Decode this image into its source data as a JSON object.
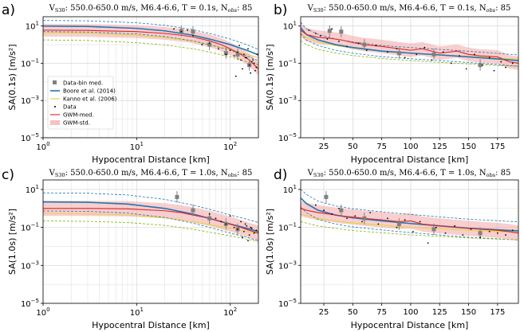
{
  "chart_data": [
    {
      "panel_label": "a)",
      "type": "line",
      "title_html": "V<tspan font-size='6.5' dy='2'>S30</tspan><tspan dy='-2'>: 550.0-650.0 m/s,  M6.4-6.6, T = 0.1s, N</tspan><tspan font-size='6.5' font-style='italic' dy='2'>obs</tspan><tspan dy='-2'>: 85</tspan>",
      "xlabel": "Hypocentral Distance [km]",
      "ylabel": "SA(0.1s) [m/s²]",
      "xscale": "log",
      "xlim": [
        1,
        200
      ],
      "ylim_log10": [
        -5,
        1.5
      ],
      "xticks": [
        {
          "v": 1,
          "base": "10",
          "exp": "0"
        },
        {
          "v": 10,
          "base": "10",
          "exp": "1"
        },
        {
          "v": 100,
          "base": "10",
          "exp": "2"
        }
      ],
      "yticks": [
        {
          "v": 10,
          "base": "10",
          "exp": "1"
        },
        {
          "v": 0.1,
          "base": "10",
          "exp": "−1"
        },
        {
          "v": 0.001,
          "base": "10",
          "exp": "−3"
        },
        {
          "v": 1e-05,
          "base": "10",
          "exp": "−5"
        }
      ],
      "legend": {
        "position": "center-left",
        "entries": [
          "Data-bin med.",
          "Boore et al. (2014)",
          "Kanno et al. (2006)",
          "Data",
          "GWM-med.",
          "GWM-std."
        ]
      },
      "series": [
        {
          "name": "Boore et al. (2014)",
          "x": [
            1,
            3,
            10,
            20,
            40,
            60,
            100,
            150,
            200
          ],
          "y": [
            10,
            9.5,
            7.5,
            5.5,
            3.2,
            2.0,
            1.0,
            0.5,
            0.28
          ],
          "std_factor": 2.0
        },
        {
          "name": "Kanno et al. (2006)",
          "x": [
            1,
            3,
            10,
            20,
            40,
            60,
            100,
            150,
            200
          ],
          "y": [
            4.5,
            4.2,
            3.2,
            2.4,
            1.5,
            1.0,
            0.55,
            0.3,
            0.2
          ]
        },
        {
          "name": "GWM-med.",
          "x": [
            1,
            3,
            10,
            20,
            30,
            40,
            60,
            80,
            100,
            130,
            160,
            200
          ],
          "y": [
            6,
            5.8,
            5.0,
            4.0,
            3.2,
            2.6,
            1.6,
            1.0,
            0.6,
            0.3,
            0.15,
            0.05
          ],
          "std_factor": 2.2
        },
        {
          "name": "Data-bin med.",
          "x": [
            30,
            40,
            60,
            90,
            120,
            160
          ],
          "y": [
            5.5,
            5.0,
            1.0,
            0.35,
            0.3,
            0.08
          ],
          "err": 2.0
        },
        {
          "name": "Data",
          "x": [
            25,
            30,
            35,
            40,
            50,
            60,
            75,
            90,
            100,
            110,
            120,
            130,
            140,
            150,
            160,
            170,
            180,
            190,
            195,
            115,
            125,
            135,
            145,
            155,
            165,
            175,
            185
          ],
          "y": [
            7,
            5,
            6,
            3,
            1,
            1.2,
            0.6,
            0.3,
            0.5,
            0.25,
            0.4,
            0.15,
            0.3,
            0.2,
            0.08,
            0.12,
            0.1,
            0.06,
            0.3,
            0.02,
            0.9,
            0.05,
            0.2,
            0.6,
            0.03,
            0.15,
            0.04
          ]
        }
      ]
    },
    {
      "panel_label": "b)",
      "type": "line",
      "title_html": "V<tspan font-size='6.5' dy='2'>S30</tspan><tspan dy='-2'>: 550.0-650.0 m/s,  M6.4-6.6, T = 0.1s, N</tspan><tspan font-size='6.5' font-style='italic' dy='2'>obs</tspan><tspan dy='-2'>: 85</tspan>",
      "xlabel": "Hypocentral Distance [km]",
      "ylabel": "SA(0.1s) [m/s²]",
      "xscale": "linear",
      "xlim": [
        5,
        193
      ],
      "ylim_log10": [
        -5,
        1.5
      ],
      "xticks": [
        {
          "v": 25,
          "t": "25"
        },
        {
          "v": 50,
          "t": "50"
        },
        {
          "v": 75,
          "t": "75"
        },
        {
          "v": 100,
          "t": "100"
        },
        {
          "v": 125,
          "t": "125"
        },
        {
          "v": 150,
          "t": "150"
        },
        {
          "v": 175,
          "t": "175"
        }
      ],
      "yticks": [
        {
          "v": 10,
          "base": "10",
          "exp": "1"
        },
        {
          "v": 0.1,
          "base": "10",
          "exp": "−1"
        },
        {
          "v": 0.001,
          "base": "10",
          "exp": "−3"
        },
        {
          "v": 1e-05,
          "base": "10",
          "exp": "−5"
        }
      ],
      "series": [
        {
          "name": "Boore et al. (2014)",
          "x": [
            5,
            10,
            20,
            35,
            50,
            75,
            100,
            125,
            150,
            175,
            193
          ],
          "y": [
            8,
            3.5,
            1.8,
            1.0,
            0.7,
            0.45,
            0.35,
            0.28,
            0.22,
            0.17,
            0.14
          ],
          "std_factor": 2.0
        },
        {
          "name": "Kanno et al. (2006)",
          "x": [
            5,
            10,
            20,
            35,
            50,
            75,
            100,
            125,
            150,
            175,
            193
          ],
          "y": [
            4,
            2.5,
            1.4,
            0.9,
            0.65,
            0.45,
            0.35,
            0.28,
            0.23,
            0.19,
            0.17
          ]
        },
        {
          "name": "GWM-med.",
          "x": [
            5,
            10,
            20,
            30,
            40,
            50,
            60,
            75,
            90,
            100,
            110,
            125,
            140,
            150,
            160,
            175,
            185,
            193
          ],
          "y": [
            6,
            3.5,
            2.5,
            2.2,
            1.8,
            1.3,
            1.0,
            0.8,
            0.6,
            0.5,
            0.6,
            0.35,
            0.45,
            0.3,
            0.25,
            0.22,
            0.12,
            0.1
          ],
          "std_factor": 2.3
        },
        {
          "name": "Data-bin med.",
          "x": [
            30,
            40,
            60,
            90,
            120,
            160
          ],
          "y": [
            5.5,
            5.0,
            1.0,
            0.35,
            0.3,
            0.08
          ],
          "err": 2.0
        },
        {
          "name": "Data",
          "x": [
            12,
            18,
            22,
            28,
            32,
            38,
            45,
            55,
            62,
            70,
            80,
            88,
            95,
            105,
            112,
            118,
            128,
            135,
            142,
            148,
            155,
            162,
            168,
            172,
            178,
            182,
            188
          ],
          "y": [
            6,
            4,
            3,
            2,
            7,
            1.5,
            0.8,
            1.2,
            0.5,
            0.9,
            0.4,
            0.6,
            0.2,
            0.3,
            0.7,
            0.15,
            0.4,
            0.1,
            0.25,
            0.05,
            0.3,
            0.08,
            0.2,
            0.04,
            0.12,
            0.06,
            0.1
          ]
        }
      ]
    },
    {
      "panel_label": "c)",
      "type": "line",
      "title_html": "V<tspan font-size='6.5' dy='2'>S30</tspan><tspan dy='-2'>: 550.0-650.0 m/s,  M6.4-6.6, T = 1.0s, N</tspan><tspan font-size='6.5' dy='2'>obs</tspan><tspan dy='-2'>: 85</tspan>",
      "xlabel": "Hypocentral Distance [km]",
      "ylabel": "SA(1.0s) [m/s²]",
      "xscale": "log",
      "xlim": [
        1,
        200
      ],
      "ylim_log10": [
        -5,
        1.5
      ],
      "xticks": [
        {
          "v": 1,
          "base": "10",
          "exp": "0"
        },
        {
          "v": 10,
          "base": "10",
          "exp": "1"
        },
        {
          "v": 100,
          "base": "10",
          "exp": "2"
        }
      ],
      "yticks": [
        {
          "v": 10,
          "base": "10",
          "exp": "1"
        },
        {
          "v": 0.1,
          "base": "10",
          "exp": "−1"
        },
        {
          "v": 0.001,
          "base": "10",
          "exp": "−3"
        },
        {
          "v": 1e-05,
          "base": "10",
          "exp": "−5"
        }
      ],
      "series": [
        {
          "name": "Boore et al. (2014)",
          "x": [
            1,
            3,
            8,
            20,
            40,
            60,
            100,
            150,
            200
          ],
          "y": [
            2.2,
            2.1,
            1.7,
            1.0,
            0.5,
            0.3,
            0.15,
            0.09,
            0.06
          ],
          "std_factor": 3.0
        },
        {
          "name": "Kanno et al. (2006)",
          "x": [
            1,
            3,
            8,
            20,
            40,
            60,
            100,
            150,
            200
          ],
          "y": [
            0.55,
            0.52,
            0.45,
            0.32,
            0.2,
            0.14,
            0.09,
            0.06,
            0.045
          ]
        },
        {
          "name": "GWM-med.",
          "x": [
            1,
            3,
            8,
            20,
            30,
            40,
            60,
            80,
            100,
            130,
            160,
            200
          ],
          "y": [
            1.0,
            1.0,
            0.95,
            0.75,
            0.6,
            0.45,
            0.3,
            0.2,
            0.15,
            0.1,
            0.07,
            0.05
          ],
          "std_factor": 2.5
        },
        {
          "name": "Data-bin med.",
          "x": [
            27,
            40,
            60,
            90,
            120
          ],
          "y": [
            4.0,
            0.8,
            0.3,
            0.15,
            0.08
          ],
          "err": 2.0
        },
        {
          "name": "Data",
          "x": [
            60,
            70,
            80,
            90,
            100,
            110,
            120,
            130,
            140,
            150,
            160,
            170,
            180,
            190,
            135,
            145,
            155,
            165
          ],
          "y": [
            0.5,
            0.3,
            0.2,
            0.15,
            0.4,
            0.1,
            0.08,
            0.2,
            0.06,
            0.12,
            0.04,
            0.09,
            0.05,
            0.07,
            0.03,
            0.15,
            0.02,
            0.1
          ]
        }
      ]
    },
    {
      "panel_label": "d)",
      "type": "line",
      "title_html": "V<tspan font-size='6.5' dy='2'>S30</tspan><tspan dy='-2'>: 550.0-650.0 m/s,  M6.4-6.6, T = 1.0s, N</tspan><tspan font-size='6.5' dy='2'>obs</tspan><tspan dy='-2'>: 85</tspan>",
      "xlabel": "Hypocentral Distance [km]",
      "ylabel": "SA(1.0s) [m/s²]",
      "xscale": "linear",
      "xlim": [
        5,
        193
      ],
      "ylim_log10": [
        -5,
        1.5
      ],
      "xticks": [
        {
          "v": 25,
          "t": "25"
        },
        {
          "v": 50,
          "t": "50"
        },
        {
          "v": 75,
          "t": "75"
        },
        {
          "v": 100,
          "t": "100"
        },
        {
          "v": 125,
          "t": "125"
        },
        {
          "v": 150,
          "t": "150"
        },
        {
          "v": 175,
          "t": "175"
        }
      ],
      "yticks": [
        {
          "v": 10,
          "base": "10",
          "exp": "1"
        },
        {
          "v": 0.1,
          "base": "10",
          "exp": "−1"
        },
        {
          "v": 0.001,
          "base": "10",
          "exp": "−3"
        },
        {
          "v": 1e-05,
          "base": "10",
          "exp": "−5"
        }
      ],
      "series": [
        {
          "name": "Boore et al. (2014)",
          "x": [
            5,
            10,
            20,
            35,
            50,
            75,
            100,
            125,
            150,
            175,
            193
          ],
          "y": [
            3.5,
            1.8,
            0.8,
            0.45,
            0.32,
            0.22,
            0.16,
            0.12,
            0.09,
            0.075,
            0.065
          ],
          "std_factor": 3.0
        },
        {
          "name": "Kanno et al. (2006)",
          "x": [
            5,
            10,
            20,
            35,
            50,
            75,
            100,
            125,
            150,
            175,
            193
          ],
          "y": [
            0.5,
            0.42,
            0.3,
            0.22,
            0.17,
            0.13,
            0.1,
            0.085,
            0.07,
            0.06,
            0.055
          ]
        },
        {
          "name": "GWM-med.",
          "x": [
            5,
            10,
            20,
            30,
            40,
            50,
            60,
            75,
            90,
            100,
            110,
            125,
            140,
            150,
            160,
            175,
            185,
            193
          ],
          "y": [
            1.0,
            0.8,
            0.6,
            0.5,
            0.4,
            0.35,
            0.3,
            0.25,
            0.2,
            0.22,
            0.15,
            0.12,
            0.1,
            0.09,
            0.08,
            0.07,
            0.06,
            0.05
          ],
          "std_factor": 2.5
        },
        {
          "name": "Data-bin med.",
          "x": [
            27,
            40,
            60,
            90,
            120,
            160
          ],
          "y": [
            4.0,
            0.8,
            0.3,
            0.15,
            0.08,
            0.05
          ],
          "err": 2.0
        },
        {
          "name": "Data",
          "x": [
            18,
            25,
            32,
            38,
            45,
            52,
            58,
            65,
            72,
            80,
            88,
            95,
            102,
            108,
            115,
            122,
            130,
            138,
            145,
            152,
            160,
            168,
            175,
            182,
            188
          ],
          "y": [
            1.5,
            0.8,
            0.5,
            1.0,
            0.3,
            0.4,
            0.2,
            0.6,
            0.15,
            0.3,
            0.1,
            0.25,
            0.06,
            0.2,
            0.015,
            0.1,
            0.05,
            0.12,
            0.04,
            0.08,
            0.03,
            0.06,
            0.05,
            0.04,
            0.07
          ]
        }
      ]
    }
  ],
  "colors": {
    "boore": "#1f77b4",
    "kanno": "#e6d34a",
    "gwm": "#d62728",
    "gwm_std": "#f4a6a6",
    "data_bin": "#808080",
    "data": "#000000",
    "grid": "#d0d0d0"
  }
}
